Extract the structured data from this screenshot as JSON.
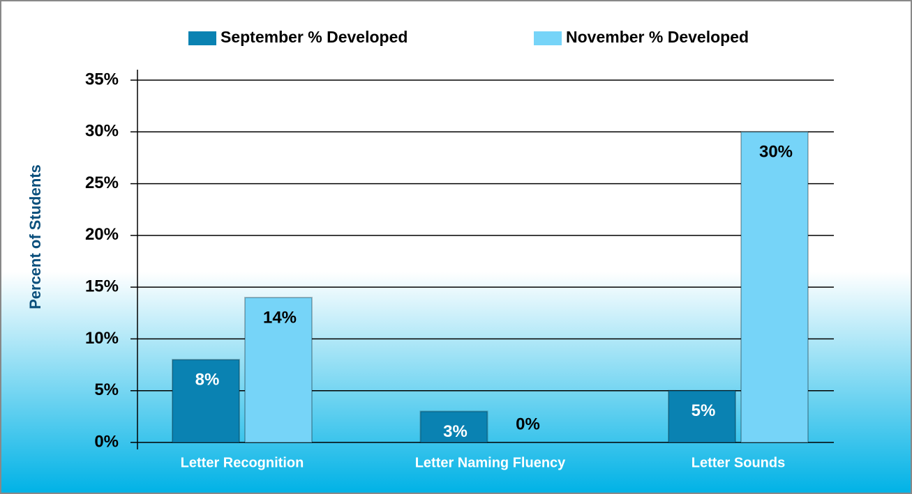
{
  "chart_data": {
    "type": "bar",
    "y_label": "Percent of Students",
    "categories": [
      "Letter Recognition",
      "Letter Naming Fluency",
      "Letter Sounds"
    ],
    "series": [
      {
        "name": "September % Developed",
        "color": "#0a82b2",
        "values": [
          8,
          3,
          5
        ],
        "value_labels": [
          "8%",
          "3%",
          "5%"
        ]
      },
      {
        "name": "November % Developed",
        "color": "#76d4f8",
        "values": [
          14,
          0,
          30
        ],
        "value_labels": [
          "14%",
          "0%",
          "30%"
        ]
      }
    ],
    "ylim": [
      0,
      35
    ],
    "yticks": [
      {
        "value": 0,
        "label": "0%"
      },
      {
        "value": 5,
        "label": "5%"
      },
      {
        "value": 10,
        "label": "10%"
      },
      {
        "value": 15,
        "label": "15%"
      },
      {
        "value": 20,
        "label": "20%"
      },
      {
        "value": 25,
        "label": "25%"
      },
      {
        "value": 30,
        "label": "30%"
      },
      {
        "value": 35,
        "label": "35%"
      }
    ],
    "grid": true
  }
}
